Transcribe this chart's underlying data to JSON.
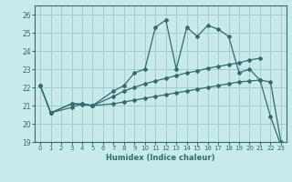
{
  "xlabel": "Humidex (Indice chaleur)",
  "bg_color": "#c8eaea",
  "grid_color": "#a0c8c8",
  "line_color": "#2e6e6e",
  "xlim": [
    -0.5,
    23.5
  ],
  "ylim": [
    19,
    26.5
  ],
  "xticks": [
    0,
    1,
    2,
    3,
    4,
    5,
    6,
    7,
    8,
    9,
    10,
    11,
    12,
    13,
    14,
    15,
    16,
    17,
    18,
    19,
    20,
    21,
    22,
    23
  ],
  "yticks": [
    19,
    20,
    21,
    22,
    23,
    24,
    25,
    26
  ],
  "line1_x": [
    0,
    1,
    3,
    4,
    5,
    7,
    8,
    9,
    10,
    11,
    12,
    13,
    14,
    15,
    16,
    17,
    18,
    19,
    20,
    21,
    22,
    23
  ],
  "line1_y": [
    22.1,
    20.6,
    21.1,
    21.1,
    21.0,
    21.8,
    22.1,
    22.8,
    23.0,
    25.3,
    25.7,
    23.0,
    25.3,
    24.8,
    25.4,
    25.2,
    24.8,
    22.8,
    23.0,
    22.4,
    20.4,
    18.8
  ],
  "line2_x": [
    0,
    1,
    3,
    4,
    5,
    7,
    8,
    9,
    10,
    11,
    12,
    13,
    14,
    15,
    16,
    17,
    18,
    19,
    20,
    21
  ],
  "line2_y": [
    22.1,
    20.6,
    21.1,
    21.05,
    21.0,
    21.5,
    21.8,
    22.0,
    22.2,
    22.35,
    22.5,
    22.65,
    22.8,
    22.9,
    23.05,
    23.15,
    23.25,
    23.35,
    23.5,
    23.6
  ],
  "line3_x": [
    0,
    1,
    3,
    4,
    5,
    7,
    8,
    9,
    10,
    11,
    12,
    13,
    14,
    15,
    16,
    17,
    18,
    19,
    20,
    21,
    22,
    23
  ],
  "line3_y": [
    22.1,
    20.6,
    20.9,
    21.1,
    21.0,
    21.1,
    21.2,
    21.3,
    21.4,
    21.5,
    21.6,
    21.7,
    21.8,
    21.9,
    22.0,
    22.1,
    22.2,
    22.3,
    22.35,
    22.4,
    22.3,
    19.0
  ]
}
